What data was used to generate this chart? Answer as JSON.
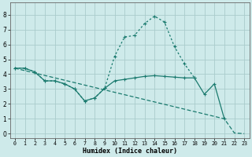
{
  "xlabel": "Humidex (Indice chaleur)",
  "xlim": [
    -0.5,
    23.5
  ],
  "ylim": [
    -0.3,
    8.8
  ],
  "yticks": [
    0,
    1,
    2,
    3,
    4,
    5,
    6,
    7,
    8
  ],
  "xticks": [
    0,
    1,
    2,
    3,
    4,
    5,
    6,
    7,
    8,
    9,
    10,
    11,
    12,
    13,
    14,
    15,
    16,
    17,
    18,
    19,
    20,
    21,
    22,
    23
  ],
  "bg_color": "#ceeaea",
  "grid_color": "#aacccc",
  "line_color": "#1a7a6e",
  "line_peak_x": [
    0,
    1,
    2,
    3,
    4,
    5,
    6,
    7,
    8,
    9,
    10,
    11,
    12,
    13,
    14,
    15,
    16,
    17,
    18
  ],
  "line_peak_y": [
    4.4,
    4.4,
    4.15,
    3.55,
    3.55,
    3.35,
    3.0,
    2.2,
    2.4,
    3.05,
    5.2,
    6.5,
    6.6,
    7.4,
    7.9,
    7.5,
    5.85,
    4.7,
    3.75
  ],
  "line_flat_x": [
    0,
    1,
    2,
    3,
    4,
    5,
    6,
    7,
    8,
    9,
    10,
    11,
    12,
    13,
    14,
    15,
    16,
    17,
    18,
    19,
    20,
    21
  ],
  "line_flat_y": [
    4.4,
    4.4,
    4.15,
    3.55,
    3.55,
    3.35,
    3.0,
    2.2,
    2.4,
    3.05,
    3.55,
    3.65,
    3.75,
    3.85,
    3.9,
    3.85,
    3.8,
    3.75,
    3.75,
    2.65,
    3.35,
    1.0
  ],
  "line_decline_x": [
    0,
    21,
    22,
    23
  ],
  "line_decline_y": [
    4.4,
    1.0,
    0.05,
    0.0
  ]
}
